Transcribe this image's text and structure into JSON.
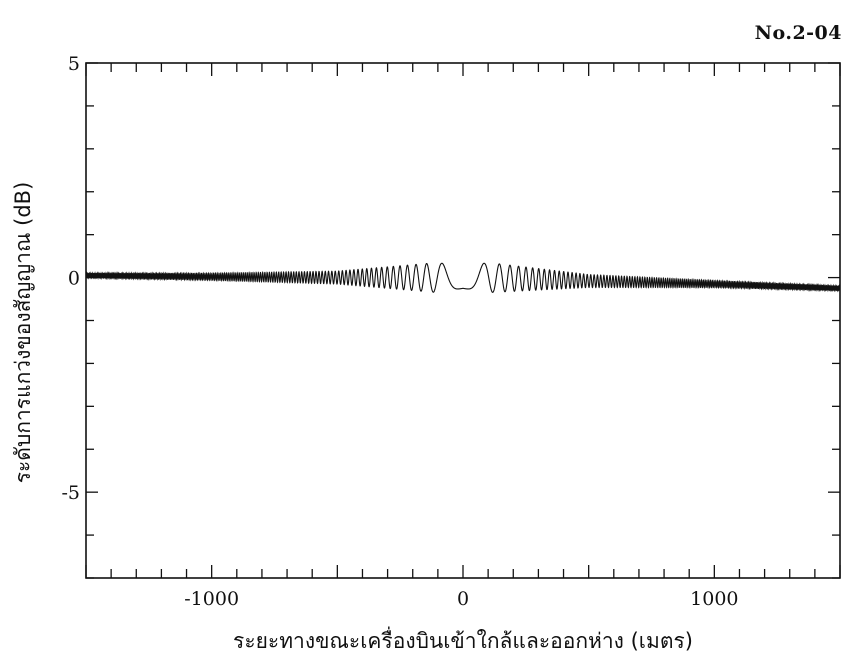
{
  "doc_id": "No.2-04",
  "chart_data": {
    "type": "line",
    "title": "",
    "xlabel": "ระยะทางขณะเครื่องบินเข้าใกล้และออกห่าง (เมตร)",
    "ylabel": "ระดับการแกว่งของสัญญาณ (dB)",
    "xlim": [
      -1500,
      1500
    ],
    "ylim": [
      -7,
      5
    ],
    "xticks": [
      -1000,
      0,
      1000
    ],
    "xtick_labels": [
      "-1000",
      "0",
      "1000"
    ],
    "yticks": [
      5,
      0,
      -5
    ],
    "ytick_labels": [
      "5",
      "0",
      "-5"
    ],
    "grid": false,
    "series": [
      {
        "name": "",
        "description_points": {
          "x": [
            -1500,
            -1000,
            -500,
            -400,
            -300,
            -200,
            -100,
            0,
            100,
            200,
            300,
            400,
            500,
            1000,
            1500
          ],
          "envelope_db": [
            0.05,
            0.08,
            0.15,
            0.2,
            0.25,
            0.3,
            0.35,
            0.25,
            0.35,
            0.3,
            0.25,
            0.2,
            0.15,
            0.08,
            0.05
          ],
          "baseline_db": [
            0.05,
            0.02,
            0.0,
            0.0,
            0.0,
            0.0,
            0.0,
            0.0,
            0.0,
            -0.02,
            -0.04,
            -0.06,
            -0.08,
            -0.15,
            -0.25
          ]
        }
      }
    ]
  }
}
